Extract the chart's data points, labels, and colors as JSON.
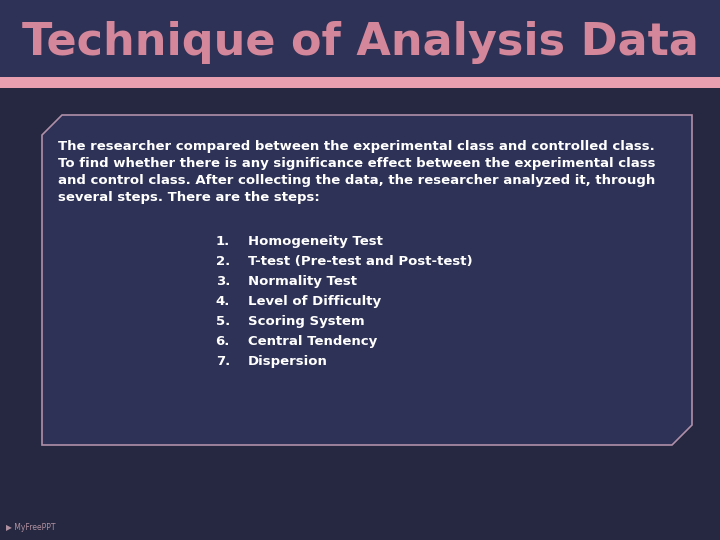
{
  "title": "Technique of Analysis Data",
  "title_color": "#d4879a",
  "title_fontsize": 32,
  "bg_color": "#2e3256",
  "bottom_strip_color": "#e8a0b0",
  "bottom_dark_color": "#252840",
  "box_border_color": "#b090a8",
  "paragraph_lines": [
    "The researcher compared between the experimental class and controlled class.",
    "To find whether there is any significance effect between the experimental class",
    "and control class. After collecting the data, the researcher analyzed it, through",
    "several steps. There are the steps:"
  ],
  "paragraph_color": "#ffffff",
  "paragraph_fontsize": 9.5,
  "list_items": [
    "Homogeneity Test",
    "T-test (Pre-test and Post-test)",
    "Normality Test",
    "Level of Difficulty",
    "Scoring System",
    "Central Tendency",
    "Dispersion"
  ],
  "list_color": "#ffffff",
  "list_fontsize": 9.5,
  "flower_positions": [
    50,
    145,
    280,
    390,
    480,
    590,
    670
  ],
  "flower_sizes": [
    16,
    26,
    16,
    28,
    22,
    18,
    13
  ]
}
